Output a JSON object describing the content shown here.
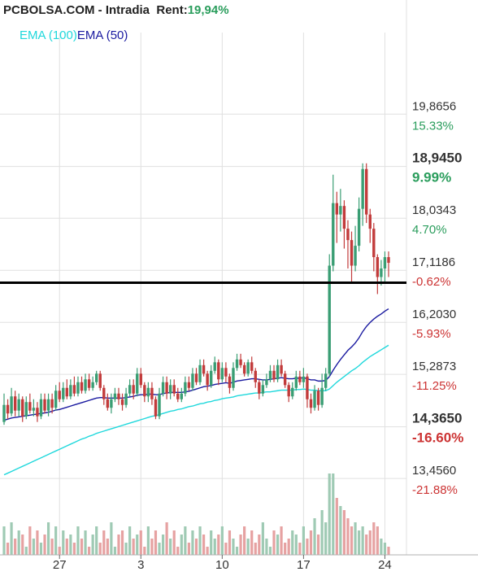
{
  "header": {
    "symbol": "PCBOLSA.COM",
    "separator": " - ",
    "mode": "Intradia",
    "rent_label": "Rent:",
    "rent_value": "19,94%"
  },
  "legend": {
    "ema100": "EMA (100)",
    "ema50": "EMA (50)"
  },
  "colors": {
    "up_candle": "#3a9e74",
    "down_candle": "#c23b3b",
    "ema50": "#1a1aa0",
    "ema100": "#20d8dc",
    "volume_up": "#9fcab4",
    "volume_down": "#e6a2a2",
    "grid": "#e0e0e0",
    "positive_pct": "#2a9d5c",
    "negative_pct": "#cc3333",
    "reference_line": "#000000"
  },
  "chart_data": {
    "type": "candlestick",
    "y_range": [
      13.0,
      20.9
    ],
    "reference_price": 16.9,
    "price_levels": [
      {
        "price": "19,8656",
        "pct": "15.33%",
        "bold": false
      },
      {
        "price": "18,9450",
        "pct": "9.99%",
        "bold": true
      },
      {
        "price": "18,0343",
        "pct": "4.70%",
        "bold": false
      },
      {
        "price": "17,1186",
        "pct": "-0.62%",
        "bold": false
      },
      {
        "price": "16,2030",
        "pct": "-5.93%",
        "bold": false
      },
      {
        "price": "15,2873",
        "pct": "-11.25%",
        "bold": false
      },
      {
        "price": "14,3650",
        "pct": "-16.60%",
        "bold": true
      },
      {
        "price": "13,4560",
        "pct": "-21.88%",
        "bold": false
      }
    ],
    "x_ticks": [
      {
        "label": "27",
        "index": 15
      },
      {
        "label": "3",
        "index": 37
      },
      {
        "label": "10",
        "index": 59
      },
      {
        "label": "17",
        "index": 81
      },
      {
        "label": "24",
        "index": 103
      }
    ],
    "candles": [
      [
        14.45,
        14.75,
        14.95,
        14.4
      ],
      [
        14.75,
        14.6,
        14.85,
        14.5
      ],
      [
        14.6,
        14.9,
        15.05,
        14.55
      ],
      [
        14.9,
        14.65,
        15.0,
        14.55
      ],
      [
        14.65,
        14.85,
        14.95,
        14.55
      ],
      [
        14.85,
        14.55,
        14.9,
        14.45
      ],
      [
        14.55,
        14.8,
        14.9,
        14.5
      ],
      [
        14.8,
        14.65,
        14.95,
        14.6
      ],
      [
        14.65,
        14.7,
        14.85,
        14.55
      ],
      [
        14.7,
        14.55,
        14.8,
        14.45
      ],
      [
        14.55,
        14.85,
        14.95,
        14.5
      ],
      [
        14.85,
        14.65,
        14.95,
        14.6
      ],
      [
        14.65,
        14.85,
        14.95,
        14.55
      ],
      [
        14.85,
        14.7,
        14.95,
        14.6
      ],
      [
        14.7,
        15.0,
        15.1,
        14.65
      ],
      [
        15.0,
        14.85,
        15.15,
        14.8
      ],
      [
        14.85,
        15.05,
        15.15,
        14.8
      ],
      [
        15.05,
        14.9,
        15.2,
        14.85
      ],
      [
        14.9,
        15.1,
        15.2,
        14.85
      ],
      [
        15.1,
        14.95,
        15.25,
        14.9
      ],
      [
        14.95,
        15.15,
        15.25,
        14.9
      ],
      [
        15.15,
        15.0,
        15.25,
        14.95
      ],
      [
        15.0,
        15.2,
        15.3,
        14.95
      ],
      [
        15.2,
        15.05,
        15.3,
        15.0
      ],
      [
        15.05,
        15.15,
        15.25,
        15.0
      ],
      [
        15.15,
        15.3,
        15.35,
        15.1
      ],
      [
        15.3,
        15.05,
        15.35,
        15.0
      ],
      [
        15.05,
        14.85,
        15.1,
        14.75
      ],
      [
        14.85,
        14.7,
        14.95,
        14.65
      ],
      [
        14.7,
        14.85,
        14.95,
        14.6
      ],
      [
        14.85,
        14.95,
        15.05,
        14.8
      ],
      [
        14.95,
        14.85,
        15.05,
        14.75
      ],
      [
        14.85,
        14.75,
        14.95,
        14.65
      ],
      [
        14.75,
        14.95,
        15.05,
        14.7
      ],
      [
        14.95,
        15.1,
        15.2,
        14.9
      ],
      [
        15.1,
        14.95,
        15.2,
        14.85
      ],
      [
        14.95,
        15.3,
        15.4,
        14.9
      ],
      [
        15.3,
        15.1,
        15.4,
        15.05
      ],
      [
        15.1,
        14.9,
        15.15,
        14.8
      ],
      [
        14.9,
        15.05,
        15.15,
        14.8
      ],
      [
        15.05,
        14.85,
        15.15,
        14.75
      ],
      [
        14.85,
        14.55,
        14.9,
        14.5
      ],
      [
        14.55,
        14.95,
        15.05,
        14.5
      ],
      [
        14.95,
        15.15,
        15.25,
        14.9
      ],
      [
        15.15,
        14.95,
        15.25,
        14.85
      ],
      [
        14.95,
        15.1,
        15.2,
        14.85
      ],
      [
        15.1,
        14.95,
        15.2,
        14.9
      ],
      [
        14.95,
        14.85,
        15.05,
        14.8
      ],
      [
        14.85,
        14.95,
        15.05,
        14.8
      ],
      [
        14.95,
        15.15,
        15.25,
        14.9
      ],
      [
        15.15,
        15.05,
        15.25,
        15.0
      ],
      [
        15.05,
        15.3,
        15.4,
        15.0
      ],
      [
        15.3,
        15.15,
        15.4,
        15.1
      ],
      [
        15.15,
        15.45,
        15.55,
        15.1
      ],
      [
        15.45,
        15.3,
        15.55,
        15.25
      ],
      [
        15.3,
        15.1,
        15.35,
        15.0
      ],
      [
        15.1,
        15.35,
        15.45,
        15.05
      ],
      [
        15.35,
        15.5,
        15.6,
        15.3
      ],
      [
        15.5,
        15.2,
        15.55,
        15.1
      ],
      [
        15.2,
        15.4,
        15.5,
        15.15
      ],
      [
        15.4,
        15.25,
        15.5,
        15.15
      ],
      [
        15.25,
        15.05,
        15.3,
        14.95
      ],
      [
        15.05,
        15.4,
        15.5,
        15.0
      ],
      [
        15.4,
        15.55,
        15.65,
        15.35
      ],
      [
        15.55,
        15.45,
        15.65,
        15.4
      ],
      [
        15.45,
        15.3,
        15.5,
        15.25
      ],
      [
        15.3,
        15.5,
        15.55,
        15.25
      ],
      [
        15.5,
        15.35,
        15.6,
        15.3
      ],
      [
        15.35,
        15.15,
        15.4,
        15.05
      ],
      [
        15.15,
        14.95,
        15.2,
        14.85
      ],
      [
        14.95,
        15.1,
        15.2,
        14.9
      ],
      [
        15.1,
        15.2,
        15.3,
        15.05
      ],
      [
        15.2,
        15.35,
        15.45,
        15.15
      ],
      [
        15.35,
        15.2,
        15.45,
        15.15
      ],
      [
        15.2,
        15.45,
        15.55,
        15.15
      ],
      [
        15.45,
        15.3,
        15.55,
        15.25
      ],
      [
        15.3,
        15.1,
        15.35,
        15.05
      ],
      [
        15.1,
        14.9,
        15.15,
        14.8
      ],
      [
        14.9,
        15.05,
        15.15,
        14.85
      ],
      [
        15.05,
        15.25,
        15.35,
        15.0
      ],
      [
        15.25,
        15.15,
        15.35,
        15.1
      ],
      [
        15.15,
        15.25,
        15.4,
        15.05
      ],
      [
        15.25,
        14.85,
        15.3,
        14.7
      ],
      [
        14.85,
        14.7,
        14.95,
        14.6
      ],
      [
        14.7,
        15.0,
        15.1,
        14.65
      ],
      [
        15.0,
        14.75,
        15.05,
        14.65
      ],
      [
        14.75,
        15.05,
        15.3,
        14.7
      ],
      [
        15.05,
        15.3,
        15.4,
        15.0
      ],
      [
        15.3,
        17.2,
        17.4,
        15.25
      ],
      [
        17.2,
        18.3,
        18.8,
        17.1
      ],
      [
        18.3,
        18.1,
        18.5,
        17.6
      ],
      [
        18.1,
        18.25,
        18.55,
        17.8
      ],
      [
        18.25,
        17.85,
        18.35,
        17.5
      ],
      [
        17.85,
        17.65,
        18.0,
        17.15
      ],
      [
        17.65,
        17.2,
        17.8,
        16.9
      ],
      [
        17.2,
        17.55,
        17.9,
        17.1
      ],
      [
        17.55,
        18.2,
        18.4,
        17.45
      ],
      [
        18.2,
        18.9,
        19.0,
        17.9
      ],
      [
        18.9,
        18.1,
        19.0,
        17.95
      ],
      [
        18.1,
        17.85,
        18.2,
        17.6
      ],
      [
        17.85,
        17.35,
        17.95,
        17.1
      ],
      [
        17.35,
        17.0,
        17.4,
        16.7
      ],
      [
        17.0,
        17.15,
        17.3,
        16.85
      ],
      [
        17.15,
        17.35,
        17.45,
        16.9
      ],
      [
        17.35,
        17.25,
        17.45,
        17.0
      ]
    ],
    "ema50": [
      14.48,
      14.5,
      14.52,
      14.53,
      14.54,
      14.55,
      14.56,
      14.57,
      14.58,
      14.59,
      14.6,
      14.61,
      14.62,
      14.64,
      14.66,
      14.67,
      14.69,
      14.71,
      14.73,
      14.75,
      14.77,
      14.79,
      14.81,
      14.83,
      14.85,
      14.87,
      14.88,
      14.88,
      14.87,
      14.87,
      14.87,
      14.87,
      14.87,
      14.88,
      14.89,
      14.9,
      14.92,
      14.93,
      14.93,
      14.94,
      14.94,
      14.93,
      14.93,
      14.95,
      14.96,
      14.97,
      14.97,
      14.97,
      14.97,
      14.98,
      14.99,
      15.01,
      15.03,
      15.05,
      15.07,
      15.08,
      15.09,
      15.11,
      15.12,
      15.13,
      15.14,
      15.13,
      15.15,
      15.17,
      15.18,
      15.19,
      15.2,
      15.21,
      15.21,
      15.2,
      15.19,
      15.19,
      15.2,
      15.21,
      15.22,
      15.23,
      15.22,
      15.21,
      15.21,
      15.22,
      15.22,
      15.23,
      15.21,
      15.19,
      15.19,
      15.17,
      15.17,
      15.18,
      15.25,
      15.36,
      15.46,
      15.55,
      15.63,
      15.71,
      15.77,
      15.84,
      15.93,
      16.04,
      16.13,
      16.2,
      16.26,
      16.31,
      16.35,
      16.4,
      16.44
    ],
    "ema100": [
      13.52,
      13.55,
      13.58,
      13.61,
      13.64,
      13.67,
      13.7,
      13.73,
      13.76,
      13.79,
      13.82,
      13.85,
      13.88,
      13.91,
      13.94,
      13.97,
      14.0,
      14.03,
      14.06,
      14.09,
      14.12,
      14.15,
      14.17,
      14.2,
      14.22,
      14.25,
      14.27,
      14.29,
      14.31,
      14.33,
      14.35,
      14.37,
      14.39,
      14.41,
      14.43,
      14.45,
      14.47,
      14.49,
      14.51,
      14.53,
      14.55,
      14.56,
      14.58,
      14.6,
      14.62,
      14.64,
      14.65,
      14.67,
      14.68,
      14.7,
      14.72,
      14.73,
      14.75,
      14.77,
      14.78,
      14.8,
      14.81,
      14.83,
      14.84,
      14.86,
      14.87,
      14.88,
      14.89,
      14.91,
      14.92,
      14.93,
      14.94,
      14.95,
      14.96,
      14.96,
      14.97,
      14.98,
      14.98,
      14.99,
      15.0,
      15.01,
      15.01,
      15.01,
      15.01,
      15.02,
      15.02,
      15.03,
      15.02,
      15.01,
      15.01,
      15.0,
      15.0,
      15.0,
      15.03,
      15.09,
      15.15,
      15.2,
      15.25,
      15.3,
      15.35,
      15.39,
      15.44,
      15.5,
      15.55,
      15.6,
      15.64,
      15.68,
      15.72,
      15.76,
      15.8
    ],
    "volume": [
      0.35,
      0.15,
      0.4,
      0.2,
      0.3,
      0.25,
      0.1,
      0.35,
      0.2,
      0.3,
      0.15,
      0.25,
      0.4,
      0.2,
      0.35,
      0.1,
      0.3,
      0.2,
      0.25,
      0.15,
      0.35,
      0.2,
      0.3,
      0.1,
      0.25,
      0.35,
      0.15,
      0.3,
      0.2,
      0.4,
      0.1,
      0.25,
      0.3,
      0.15,
      0.35,
      0.2,
      0.25,
      0.3,
      0.1,
      0.35,
      0.2,
      0.3,
      0.15,
      0.25,
      0.4,
      0.2,
      0.3,
      0.1,
      0.25,
      0.35,
      0.15,
      0.3,
      0.2,
      0.35,
      0.25,
      0.1,
      0.3,
      0.2,
      0.25,
      0.35,
      0.15,
      0.3,
      0.2,
      0.1,
      0.25,
      0.35,
      0.2,
      0.3,
      0.15,
      0.25,
      0.4,
      0.2,
      0.1,
      0.3,
      0.25,
      0.35,
      0.15,
      0.2,
      0.3,
      0.25,
      0.15,
      0.35,
      0.2,
      0.3,
      0.45,
      0.25,
      0.55,
      0.4,
      1.0,
      1.0,
      0.7,
      0.6,
      0.55,
      0.45,
      0.35,
      0.4,
      0.3,
      0.35,
      0.25,
      0.3,
      0.4,
      0.35,
      0.2,
      0.15,
      0.1
    ]
  }
}
